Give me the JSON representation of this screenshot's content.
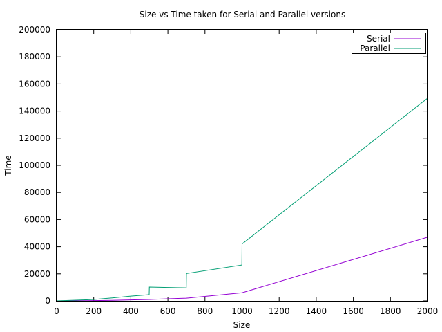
{
  "chart_data": {
    "type": "line",
    "title": "Size vs Time taken for Serial and Parallel versions",
    "xlabel": "Size",
    "ylabel": "Time",
    "xlim": [
      0,
      2000
    ],
    "ylim": [
      0,
      200000
    ],
    "xticks": [
      0,
      200,
      400,
      600,
      800,
      1000,
      1200,
      1400,
      1600,
      1800,
      2000
    ],
    "yticks": [
      0,
      20000,
      40000,
      60000,
      80000,
      100000,
      120000,
      140000,
      160000,
      180000,
      200000
    ],
    "grid": false,
    "legend_position": "top-right",
    "series": [
      {
        "name": "Serial",
        "color": "#9400d3",
        "x": [
          0,
          100,
          200,
          300,
          400,
          500,
          600,
          700,
          1000,
          2000
        ],
        "y": [
          0,
          50,
          200,
          400,
          700,
          1000,
          1500,
          2000,
          6000,
          47000
        ]
      },
      {
        "name": "Parallel",
        "color": "#009e73",
        "x": [
          0,
          200,
          300,
          400,
          499,
          500,
          600,
          699,
          700,
          999,
          1000,
          2000,
          2000
        ],
        "y": [
          0,
          1000,
          2200,
          3500,
          4600,
          10200,
          9900,
          9600,
          20200,
          26500,
          42000,
          149500,
          200000
        ]
      }
    ]
  }
}
